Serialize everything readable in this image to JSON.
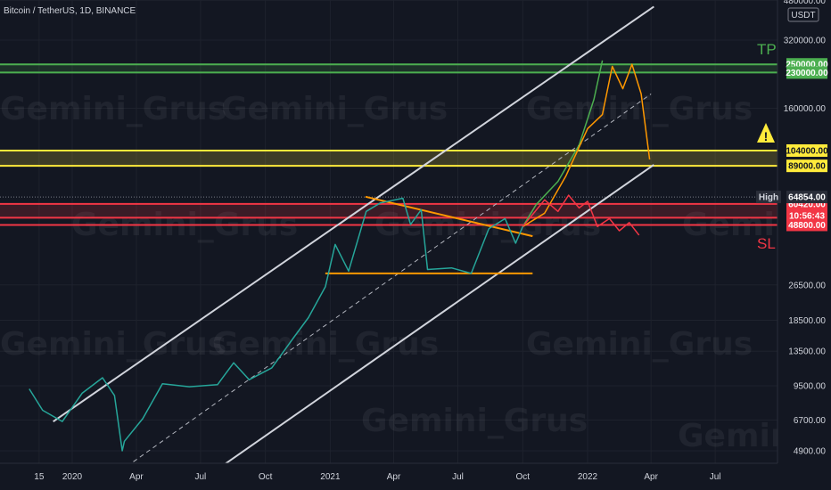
{
  "header": {
    "symbol": "Bitcoin / TetherUS, 1D, BINANCE"
  },
  "currency": "USDT",
  "watermark": "Gemini_Grus",
  "chart_data": {
    "type": "candlestick",
    "y_scale": "log",
    "y_ticks": [
      4900,
      6700,
      9500,
      13500,
      18500,
      26500,
      160000,
      320000,
      480000
    ],
    "y_tick_labels": [
      "4900.00",
      "6700.00",
      "9500.00",
      "13500.00",
      "18500.00",
      "26500.00",
      "160000.00",
      "320000.00",
      "480000.00"
    ],
    "x_ticks": [
      {
        "label": "15",
        "date": "2019-11-15"
      },
      {
        "label": "2020",
        "date": "2020-01-01"
      },
      {
        "label": "Apr",
        "date": "2020-04-01"
      },
      {
        "label": "Jul",
        "date": "2020-07-01"
      },
      {
        "label": "Oct",
        "date": "2020-10-01"
      },
      {
        "label": "2021",
        "date": "2021-01-01"
      },
      {
        "label": "Apr",
        "date": "2021-04-01"
      },
      {
        "label": "Jul",
        "date": "2021-07-01"
      },
      {
        "label": "Oct",
        "date": "2021-10-01"
      },
      {
        "label": "2022",
        "date": "2022-01-01"
      },
      {
        "label": "Apr",
        "date": "2022-04-01"
      },
      {
        "label": "Jul",
        "date": "2022-07-01"
      }
    ],
    "levels": [
      {
        "price": 250000,
        "label": "250000.00",
        "color": "#4caf50"
      },
      {
        "price": 230000,
        "label": "230000.00",
        "color": "#4caf50"
      },
      {
        "price": 104000,
        "label": "104000.00",
        "color": "#ffeb3b"
      },
      {
        "price": 89000,
        "label": "89000.00",
        "color": "#ffeb3b"
      },
      {
        "price": 60420,
        "label": "60420.00",
        "color": "#f23645"
      },
      {
        "price": 52500,
        "label": "52500.00",
        "color": "#f23645"
      },
      {
        "price": 48800,
        "label": "48800.00",
        "color": "#f23645"
      }
    ],
    "zones": [
      {
        "from": 230000,
        "to": 250000,
        "color": "#4caf50"
      },
      {
        "from": 89000,
        "to": 104000,
        "color": "#ffeb3b"
      },
      {
        "from": 52500,
        "to": 60420,
        "color": "#f23645"
      }
    ],
    "high": {
      "label": "High",
      "price": 64854,
      "value_label": "64854.00"
    },
    "countdown": "10:56:43",
    "annotations": [
      {
        "text": "TP",
        "color": "#4caf50"
      },
      {
        "text": "SL",
        "color": "#f23645"
      },
      {
        "text": "!",
        "color": "#ffeb3b"
      }
    ],
    "price_path": [
      [
        "2019-11-01",
        9200
      ],
      [
        "2019-11-20",
        7400
      ],
      [
        "2019-12-18",
        6600
      ],
      [
        "2020-01-15",
        8800
      ],
      [
        "2020-02-13",
        10300
      ],
      [
        "2020-03-01",
        8600
      ],
      [
        "2020-03-12",
        4900
      ],
      [
        "2020-03-15",
        5400
      ],
      [
        "2020-04-10",
        6800
      ],
      [
        "2020-05-08",
        9700
      ],
      [
        "2020-06-15",
        9400
      ],
      [
        "2020-07-25",
        9600
      ],
      [
        "2020-08-17",
        12000
      ],
      [
        "2020-09-08",
        10100
      ],
      [
        "2020-10-10",
        11400
      ],
      [
        "2020-11-10",
        15500
      ],
      [
        "2020-12-01",
        19000
      ],
      [
        "2020-12-25",
        26000
      ],
      [
        "2021-01-08",
        40000
      ],
      [
        "2021-01-27",
        30500
      ],
      [
        "2021-02-21",
        56000
      ],
      [
        "2021-03-13",
        61000
      ],
      [
        "2021-04-14",
        64000
      ],
      [
        "2021-04-25",
        49000
      ],
      [
        "2021-05-10",
        57000
      ],
      [
        "2021-05-19",
        31000
      ],
      [
        "2021-06-22",
        31500
      ],
      [
        "2021-07-20",
        29800
      ],
      [
        "2021-08-14",
        47000
      ],
      [
        "2021-09-06",
        52000
      ],
      [
        "2021-09-21",
        40500
      ],
      [
        "2021-10-01",
        48000
      ]
    ],
    "projections": [
      {
        "color": "#4caf50",
        "path": [
          [
            "2021-10-01",
            48000
          ],
          [
            "2021-10-20",
            60000
          ],
          [
            "2021-11-20",
            76000
          ],
          [
            "2021-12-20",
            110000
          ],
          [
            "2022-01-10",
            175000
          ],
          [
            "2022-01-22",
            260000
          ]
        ]
      },
      {
        "color": "#ff9800",
        "path": [
          [
            "2021-10-01",
            48000
          ],
          [
            "2021-11-01",
            55000
          ],
          [
            "2021-12-01",
            80000
          ],
          [
            "2022-01-01",
            130000
          ],
          [
            "2022-01-22",
            150000
          ],
          [
            "2022-02-05",
            245000
          ],
          [
            "2022-02-20",
            195000
          ],
          [
            "2022-03-05",
            250000
          ],
          [
            "2022-03-18",
            185000
          ],
          [
            "2022-03-30",
            95000
          ]
        ]
      },
      {
        "color": "#f23645",
        "path": [
          [
            "2021-10-01",
            48000
          ],
          [
            "2021-11-01",
            63000
          ],
          [
            "2021-11-20",
            56000
          ],
          [
            "2021-12-05",
            66000
          ],
          [
            "2021-12-20",
            58000
          ],
          [
            "2022-01-01",
            62000
          ],
          [
            "2022-01-15",
            48000
          ],
          [
            "2022-02-01",
            52000
          ],
          [
            "2022-02-15",
            46000
          ],
          [
            "2022-03-01",
            50000
          ],
          [
            "2022-03-15",
            44000
          ]
        ]
      }
    ],
    "channel_lines": [
      {
        "from": [
          "2019-12-05",
          6600
        ],
        "to": [
          "2022-04-05",
          450000
        ],
        "color": "#d1d4dc"
      },
      {
        "from": [
          "2020-07-01",
          3600
        ],
        "to": [
          "2022-04-05",
          90000
        ],
        "color": "#d1d4dc"
      },
      {
        "from": [
          "2020-02-01",
          3300
        ],
        "to": [
          "2022-04-01",
          185000
        ],
        "color": "#b2b5be",
        "dashed": true
      }
    ],
    "pattern_lines": [
      {
        "from": [
          "2021-02-20",
          65000
        ],
        "to": [
          "2021-10-15",
          43500
        ],
        "color": "#ff9800"
      },
      {
        "from": [
          "2020-12-25",
          29800
        ],
        "to": [
          "2021-10-15",
          29800
        ],
        "color": "#ff9800"
      }
    ]
  }
}
